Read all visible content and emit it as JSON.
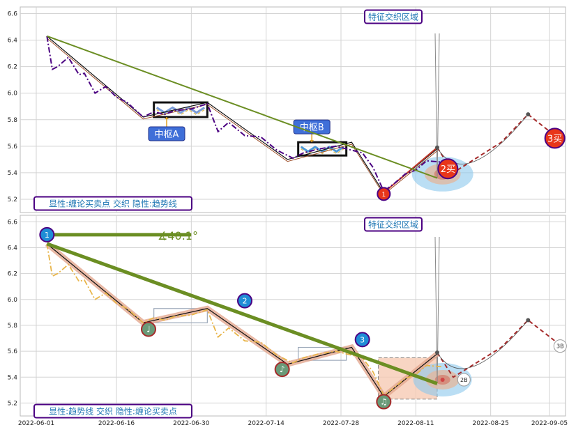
{
  "chart_data": [
    {
      "type": "line",
      "panel": "top",
      "ylim": [
        5.1,
        6.65
      ],
      "y_ticks": [
        5.2,
        5.4,
        5.6,
        5.8,
        6.0,
        6.2,
        6.4,
        6.6
      ],
      "y_tick_labels": [
        "5.2",
        "5.4",
        "5.6",
        "5.8",
        "6.0",
        "6.2",
        "6.4",
        "6.6"
      ],
      "grid": true,
      "legend_box": "显性:缠论买卖点 交织 隐性:趋势线",
      "region_label": "特征交织区域",
      "price_series": [
        [
          "2022-06-03",
          6.43
        ],
        [
          "2022-06-04",
          6.18
        ],
        [
          "2022-06-05",
          6.2
        ],
        [
          "2022-06-07",
          6.27
        ],
        [
          "2022-06-09",
          6.14
        ],
        [
          "2022-06-10",
          6.15
        ],
        [
          "2022-06-12",
          6.0
        ],
        [
          "2022-06-14",
          6.05
        ],
        [
          "2022-06-16",
          5.97
        ],
        [
          "2022-06-18",
          5.93
        ],
        [
          "2022-06-21",
          5.82
        ],
        [
          "2022-06-23",
          5.86
        ],
        [
          "2022-06-25",
          5.84
        ],
        [
          "2022-06-27",
          5.87
        ],
        [
          "2022-06-30",
          5.88
        ],
        [
          "2022-07-03",
          5.92
        ],
        [
          "2022-07-05",
          5.71
        ],
        [
          "2022-07-07",
          5.78
        ],
        [
          "2022-07-10",
          5.68
        ],
        [
          "2022-07-13",
          5.67
        ],
        [
          "2022-07-16",
          5.57
        ],
        [
          "2022-07-19",
          5.51
        ],
        [
          "2022-07-21",
          5.55
        ],
        [
          "2022-07-24",
          5.58
        ],
        [
          "2022-07-27",
          5.6
        ],
        [
          "2022-07-30",
          5.57
        ],
        [
          "2022-08-01",
          5.55
        ],
        [
          "2022-08-03",
          5.44
        ],
        [
          "2022-08-05",
          5.26
        ],
        [
          "2022-08-07",
          5.32
        ],
        [
          "2022-08-09",
          5.39
        ],
        [
          "2022-08-11",
          5.42
        ],
        [
          "2022-08-13",
          5.49
        ],
        [
          "2022-08-16",
          5.48
        ]
      ],
      "bi_lines": [
        [
          "2022-06-03",
          6.43
        ],
        [
          "2022-06-21",
          5.82
        ],
        [
          "2022-07-03",
          5.93
        ],
        [
          "2022-07-18",
          5.5
        ],
        [
          "2022-07-30",
          5.63
        ],
        [
          "2022-08-05",
          5.25
        ],
        [
          "2022-08-15",
          5.58
        ]
      ],
      "trend_lines": [
        {
          "from": [
            "2022-06-03",
            6.43
          ],
          "to": [
            "2022-08-15",
            5.36
          ]
        }
      ],
      "zhongshu": [
        {
          "label": "中枢A",
          "x0": "2022-06-23",
          "x1": "2022-07-03",
          "y0": 5.82,
          "y1": 5.93
        },
        {
          "label": "中枢B",
          "x0": "2022-07-20",
          "x1": "2022-07-29",
          "y0": 5.53,
          "y1": 5.63
        }
      ],
      "markers": [
        {
          "label": "1",
          "date": "2022-08-05",
          "value": 5.24,
          "color": "#e8361a"
        },
        {
          "label": "2买",
          "date": "2022-08-17",
          "value": 5.43,
          "color": "#e8361a"
        },
        {
          "label": "3买",
          "date": "2022-09-06",
          "value": 5.66,
          "color": "#e8361a"
        }
      ],
      "forecast": [
        [
          "2022-08-15",
          5.59
        ],
        [
          "2022-08-18",
          5.4
        ],
        [
          "2022-08-27",
          5.63
        ],
        [
          "2022-09-01",
          5.84
        ],
        [
          "2022-09-06",
          5.68
        ]
      ]
    },
    {
      "type": "line",
      "panel": "bottom",
      "ylim": [
        5.1,
        6.65
      ],
      "y_ticks": [
        5.2,
        5.4,
        5.6,
        5.8,
        6.0,
        6.2,
        6.4,
        6.6
      ],
      "y_tick_labels": [
        "5.2",
        "5.4",
        "5.6",
        "5.8",
        "6.0",
        "6.2",
        "6.4",
        "6.6"
      ],
      "x_ticks": [
        "2022-06-01",
        "2022-06-16",
        "2022-06-30",
        "2022-07-14",
        "2022-07-28",
        "2022-08-11",
        "2022-08-25",
        "2022-09-05"
      ],
      "x_tick_labels": [
        "2022-06-01",
        "2022-06-16",
        "2022-06-30",
        "2022-07-14",
        "2022-07-28",
        "2022-08-11",
        "2022-08-25",
        "2022-09-05"
      ],
      "grid": true,
      "legend_box": "显性:趋势线 交织 隐性:缠论买卖点",
      "region_label": "特征交织区域",
      "angle_label": "∡40.1°",
      "trend_points": [
        {
          "label": "1",
          "date": "2022-06-03",
          "value": 6.5
        },
        {
          "label": "2",
          "date": "2022-07-10",
          "value": 5.99
        },
        {
          "label": "3",
          "date": "2022-08-01",
          "value": 5.69
        }
      ],
      "notes": [
        {
          "label": "♩",
          "date": "2022-06-22",
          "value": 5.77
        },
        {
          "label": "♪",
          "date": "2022-07-17",
          "value": 5.46
        },
        {
          "label": "♫",
          "date": "2022-08-05",
          "value": 5.21
        }
      ],
      "small_markers": [
        {
          "label": "2B",
          "date": "2022-08-20",
          "value": 5.38
        },
        {
          "label": "3B",
          "date": "2022-09-07",
          "value": 5.64
        }
      ]
    }
  ],
  "colors": {
    "price_line": "#4b0082",
    "trend_line": "#6b8e23",
    "forecast": "#a52a2a",
    "callout_text": "#1f77b4",
    "callout_border": "#4b0082",
    "marker_fill": "#e8361a",
    "blue_circle": "#1f8dd6",
    "note_circle": "#6a9a78",
    "zhongshu_fill": "#3f6fd8"
  }
}
